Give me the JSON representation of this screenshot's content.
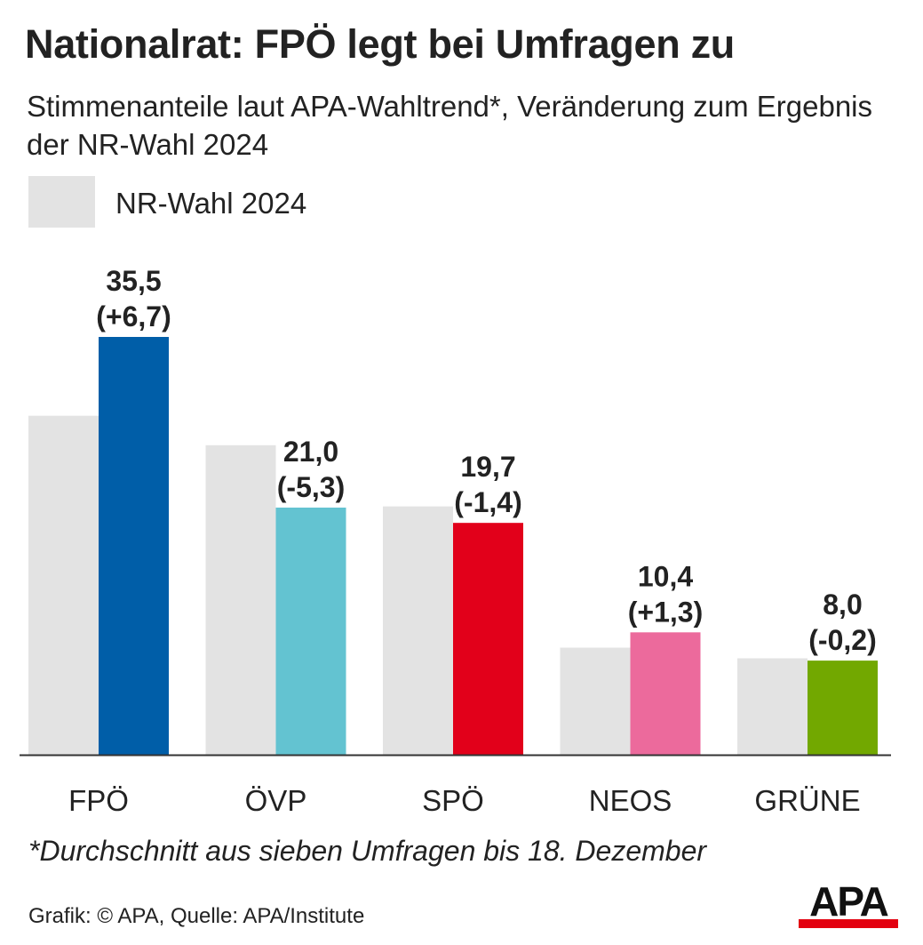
{
  "title": "Nationalrat: FPÖ legt bei Umfragen zu",
  "subtitle": "Stimmenanteile laut APA-Wahltrend*, Veränderung zum Ergebnis der NR-Wahl 2024",
  "footnote": "*Durchschnitt aus sieben Umfragen bis 18. Dezember",
  "source": "Grafik: © APA, Quelle: APA/Institute",
  "logo_text": "APA",
  "colors": {
    "previous": "#e3e3e3",
    "text": "#222222",
    "axis": "#333333",
    "logo_bar": "#e3000f"
  },
  "chart_data": {
    "type": "bar",
    "categories": [
      "FPÖ",
      "ÖVP",
      "SPÖ",
      "NEOS",
      "GRÜNE"
    ],
    "series": [
      {
        "name": "NR-Wahl 2024",
        "values": [
          28.8,
          26.3,
          21.1,
          9.1,
          8.2
        ]
      },
      {
        "values": [
          35.5,
          21.0,
          19.7,
          10.4,
          8.0
        ],
        "value_labels": [
          "35,5",
          "21,0",
          "19,7",
          "10,4",
          "8,0"
        ],
        "change_labels": [
          "(+6,7)",
          "(-5,3)",
          "(-1,4)",
          "(+1,3)",
          "(-0,2)"
        ],
        "colors": [
          "#005ea8",
          "#63c3d1",
          "#e2001a",
          "#ec6a9c",
          "#72a800"
        ]
      }
    ],
    "ylim": [
      0,
      35.5
    ],
    "grid": false,
    "legend": "top-left"
  }
}
